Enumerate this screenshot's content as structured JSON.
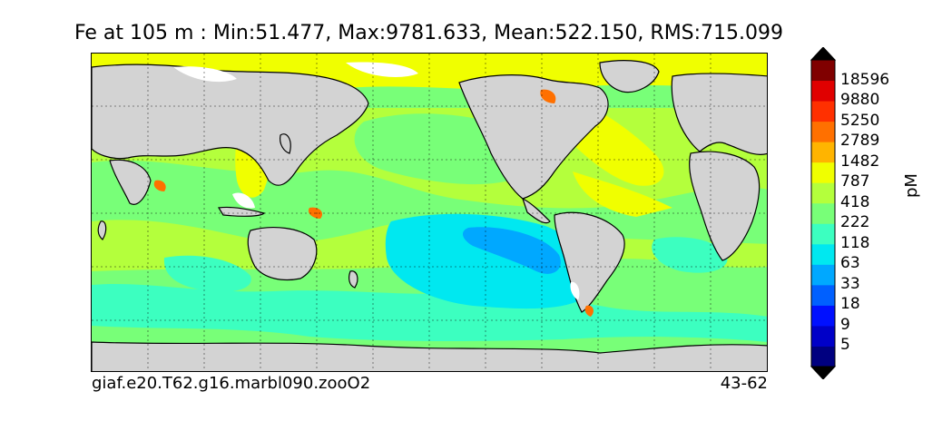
{
  "title": "Fe at 105 m : Min:51.477, Max:9781.633, Mean:522.150, RMS:715.099",
  "footer": {
    "case_name": "giaf.e20.T62.g16.marbl090.zooO2",
    "years": "43-62"
  },
  "colorbar": {
    "units": "pM",
    "extend": "both",
    "tick_labels": [
      "18596",
      "9880",
      "5250",
      "2789",
      "1482",
      "787",
      "418",
      "222",
      "118",
      "63",
      "33",
      "18",
      "9",
      "5"
    ],
    "colors": [
      "#000080",
      "#0000c8",
      "#0010ff",
      "#0060ff",
      "#00a8ff",
      "#00e8f0",
      "#3cffc0",
      "#78ff78",
      "#b4ff3c",
      "#f0ff00",
      "#ffb400",
      "#ff7000",
      "#ff3000",
      "#e00000",
      "#800000"
    ]
  },
  "map": {
    "land_color": "#d3d3d3",
    "missing_color": "#ffffff",
    "ocean_base_color": "#78ff78",
    "gridlines": "dotted"
  }
}
